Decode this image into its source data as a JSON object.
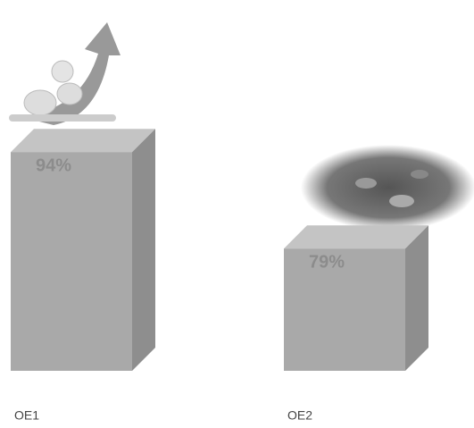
{
  "chart_data": {
    "type": "bar3d",
    "categories": [
      "OE1",
      "OE2"
    ],
    "values": [
      94,
      79
    ],
    "value_labels": [
      "94%",
      "79%"
    ],
    "color": "#a9a9a9",
    "ylim": [
      60,
      100
    ]
  }
}
